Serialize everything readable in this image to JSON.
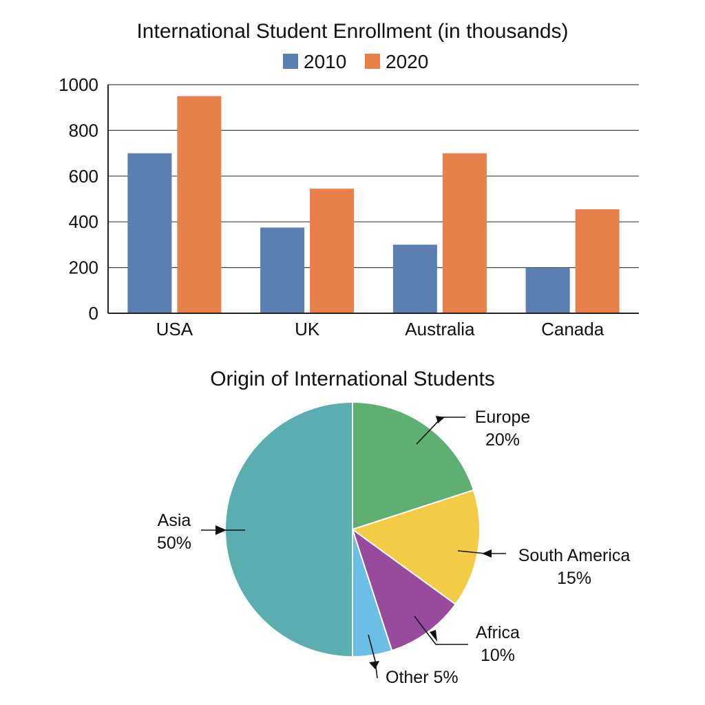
{
  "chart_data": [
    {
      "type": "bar",
      "title": "International Student Enrollment (in thousands)",
      "xlabel": "",
      "ylabel": "",
      "categories": [
        "USA",
        "UK",
        "Australia",
        "Canada"
      ],
      "series": [
        {
          "name": "2010",
          "values": [
            700,
            375,
            300,
            200
          ],
          "color": "#5b7fb0"
        },
        {
          "name": "2020",
          "values": [
            950,
            545,
            700,
            455
          ],
          "color": "#e7804a"
        }
      ],
      "ylim": [
        0,
        1000
      ],
      "yticks": [
        "0",
        "200",
        "400",
        "600",
        "800",
        "1000"
      ],
      "grid": true,
      "legend_position": "top-center"
    },
    {
      "type": "pie",
      "title": "Origin of International Students",
      "slices": [
        {
          "label": "Europe",
          "value": 20,
          "display": "20%",
          "color": "#5db071"
        },
        {
          "label": "South America",
          "value": 15,
          "display": "15%",
          "color": "#f3cc45"
        },
        {
          "label": "Africa",
          "value": 10,
          "display": "10%",
          "color": "#984a9c"
        },
        {
          "label": "Other",
          "value": 5,
          "display": "Other 5%",
          "color": "#6bbfe6"
        },
        {
          "label": "Asia",
          "value": 50,
          "display": "50%",
          "color": "#5aaeb0"
        }
      ]
    }
  ]
}
